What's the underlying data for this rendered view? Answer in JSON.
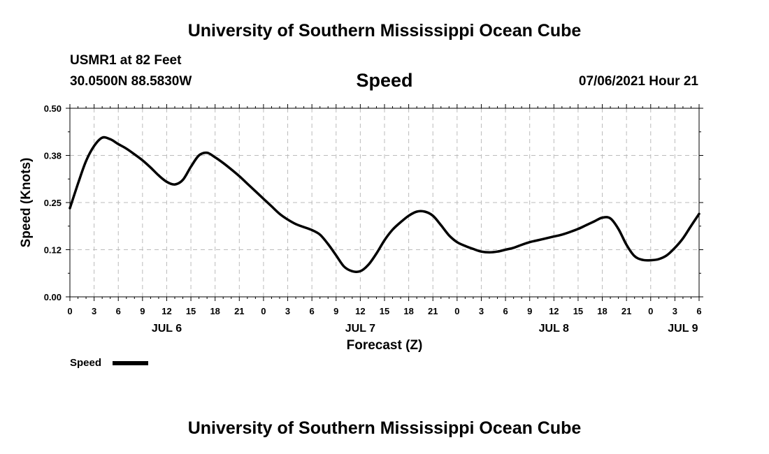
{
  "header": {
    "title_top": "University of Southern Mississippi Ocean Cube",
    "title_bottom": "University of Southern Mississippi Ocean Cube",
    "station": "USMR1 at 82 Feet",
    "coordinates": "30.0500N  88.5830W",
    "parameter": "Speed",
    "datetime": "07/06/2021 Hour 21"
  },
  "colors": {
    "line": "#000000",
    "grid": "#bbbbbb",
    "background": "#ffffff"
  },
  "chart_data": {
    "type": "line",
    "title": "Speed",
    "xlabel": "Forecast (Z)",
    "ylabel": "Speed (Knots)",
    "x_unit": "hours from JUL 6 00Z",
    "xlim": [
      0,
      78
    ],
    "ylim": [
      0,
      0.5
    ],
    "y_ticks": [
      0.0,
      0.125,
      0.25,
      0.375,
      0.5
    ],
    "y_tick_labels": [
      "0.00",
      "0.12",
      "0.25",
      "0.38",
      "0.50"
    ],
    "x_ticks": [
      0,
      3,
      6,
      9,
      12,
      15,
      18,
      21,
      24,
      27,
      30,
      33,
      36,
      39,
      42,
      45,
      48,
      51,
      54,
      57,
      60,
      63,
      66,
      69,
      72,
      75,
      78
    ],
    "x_tick_labels": [
      "0",
      "3",
      "6",
      "9",
      "12",
      "15",
      "18",
      "21",
      "0",
      "3",
      "6",
      "9",
      "12",
      "15",
      "18",
      "21",
      "0",
      "3",
      "6",
      "9",
      "12",
      "15",
      "18",
      "21",
      "0",
      "3",
      "6"
    ],
    "day_labels": [
      {
        "label": "JUL 6",
        "x": 12
      },
      {
        "label": "JUL 7",
        "x": 36
      },
      {
        "label": "JUL 8",
        "x": 60
      },
      {
        "label": "JUL 9",
        "x": 76
      }
    ],
    "grid": true,
    "legend": {
      "position": "bottom-left",
      "label": "Speed"
    },
    "series": [
      {
        "name": "Speed",
        "x": [
          0,
          1,
          2,
          3,
          4,
          5,
          6,
          7,
          8,
          9,
          10,
          11,
          12,
          13,
          14,
          15,
          16,
          17,
          18,
          19,
          20,
          21,
          22,
          23,
          24,
          25,
          26,
          27,
          28,
          29,
          30,
          31,
          32,
          33,
          34,
          35,
          36,
          37,
          38,
          39,
          40,
          41,
          42,
          43,
          44,
          45,
          46,
          47,
          48,
          49,
          50,
          51,
          52,
          53,
          54,
          55,
          56,
          57,
          58,
          59,
          60,
          61,
          62,
          63,
          64,
          65,
          66,
          67,
          68,
          69,
          70,
          71,
          72,
          73,
          74,
          75,
          76,
          77,
          78
        ],
        "values": [
          0.235,
          0.3,
          0.36,
          0.4,
          0.422,
          0.418,
          0.405,
          0.393,
          0.378,
          0.362,
          0.343,
          0.322,
          0.305,
          0.298,
          0.31,
          0.345,
          0.375,
          0.382,
          0.37,
          0.355,
          0.338,
          0.32,
          0.3,
          0.28,
          0.26,
          0.24,
          0.22,
          0.205,
          0.193,
          0.185,
          0.177,
          0.165,
          0.14,
          0.11,
          0.08,
          0.068,
          0.068,
          0.085,
          0.115,
          0.15,
          0.178,
          0.198,
          0.215,
          0.226,
          0.226,
          0.215,
          0.19,
          0.163,
          0.145,
          0.135,
          0.127,
          0.12,
          0.118,
          0.12,
          0.125,
          0.13,
          0.138,
          0.145,
          0.15,
          0.155,
          0.16,
          0.165,
          0.172,
          0.18,
          0.19,
          0.2,
          0.21,
          0.208,
          0.18,
          0.138,
          0.108,
          0.098,
          0.097,
          0.1,
          0.11,
          0.13,
          0.155,
          0.188,
          0.22
        ]
      }
    ]
  }
}
